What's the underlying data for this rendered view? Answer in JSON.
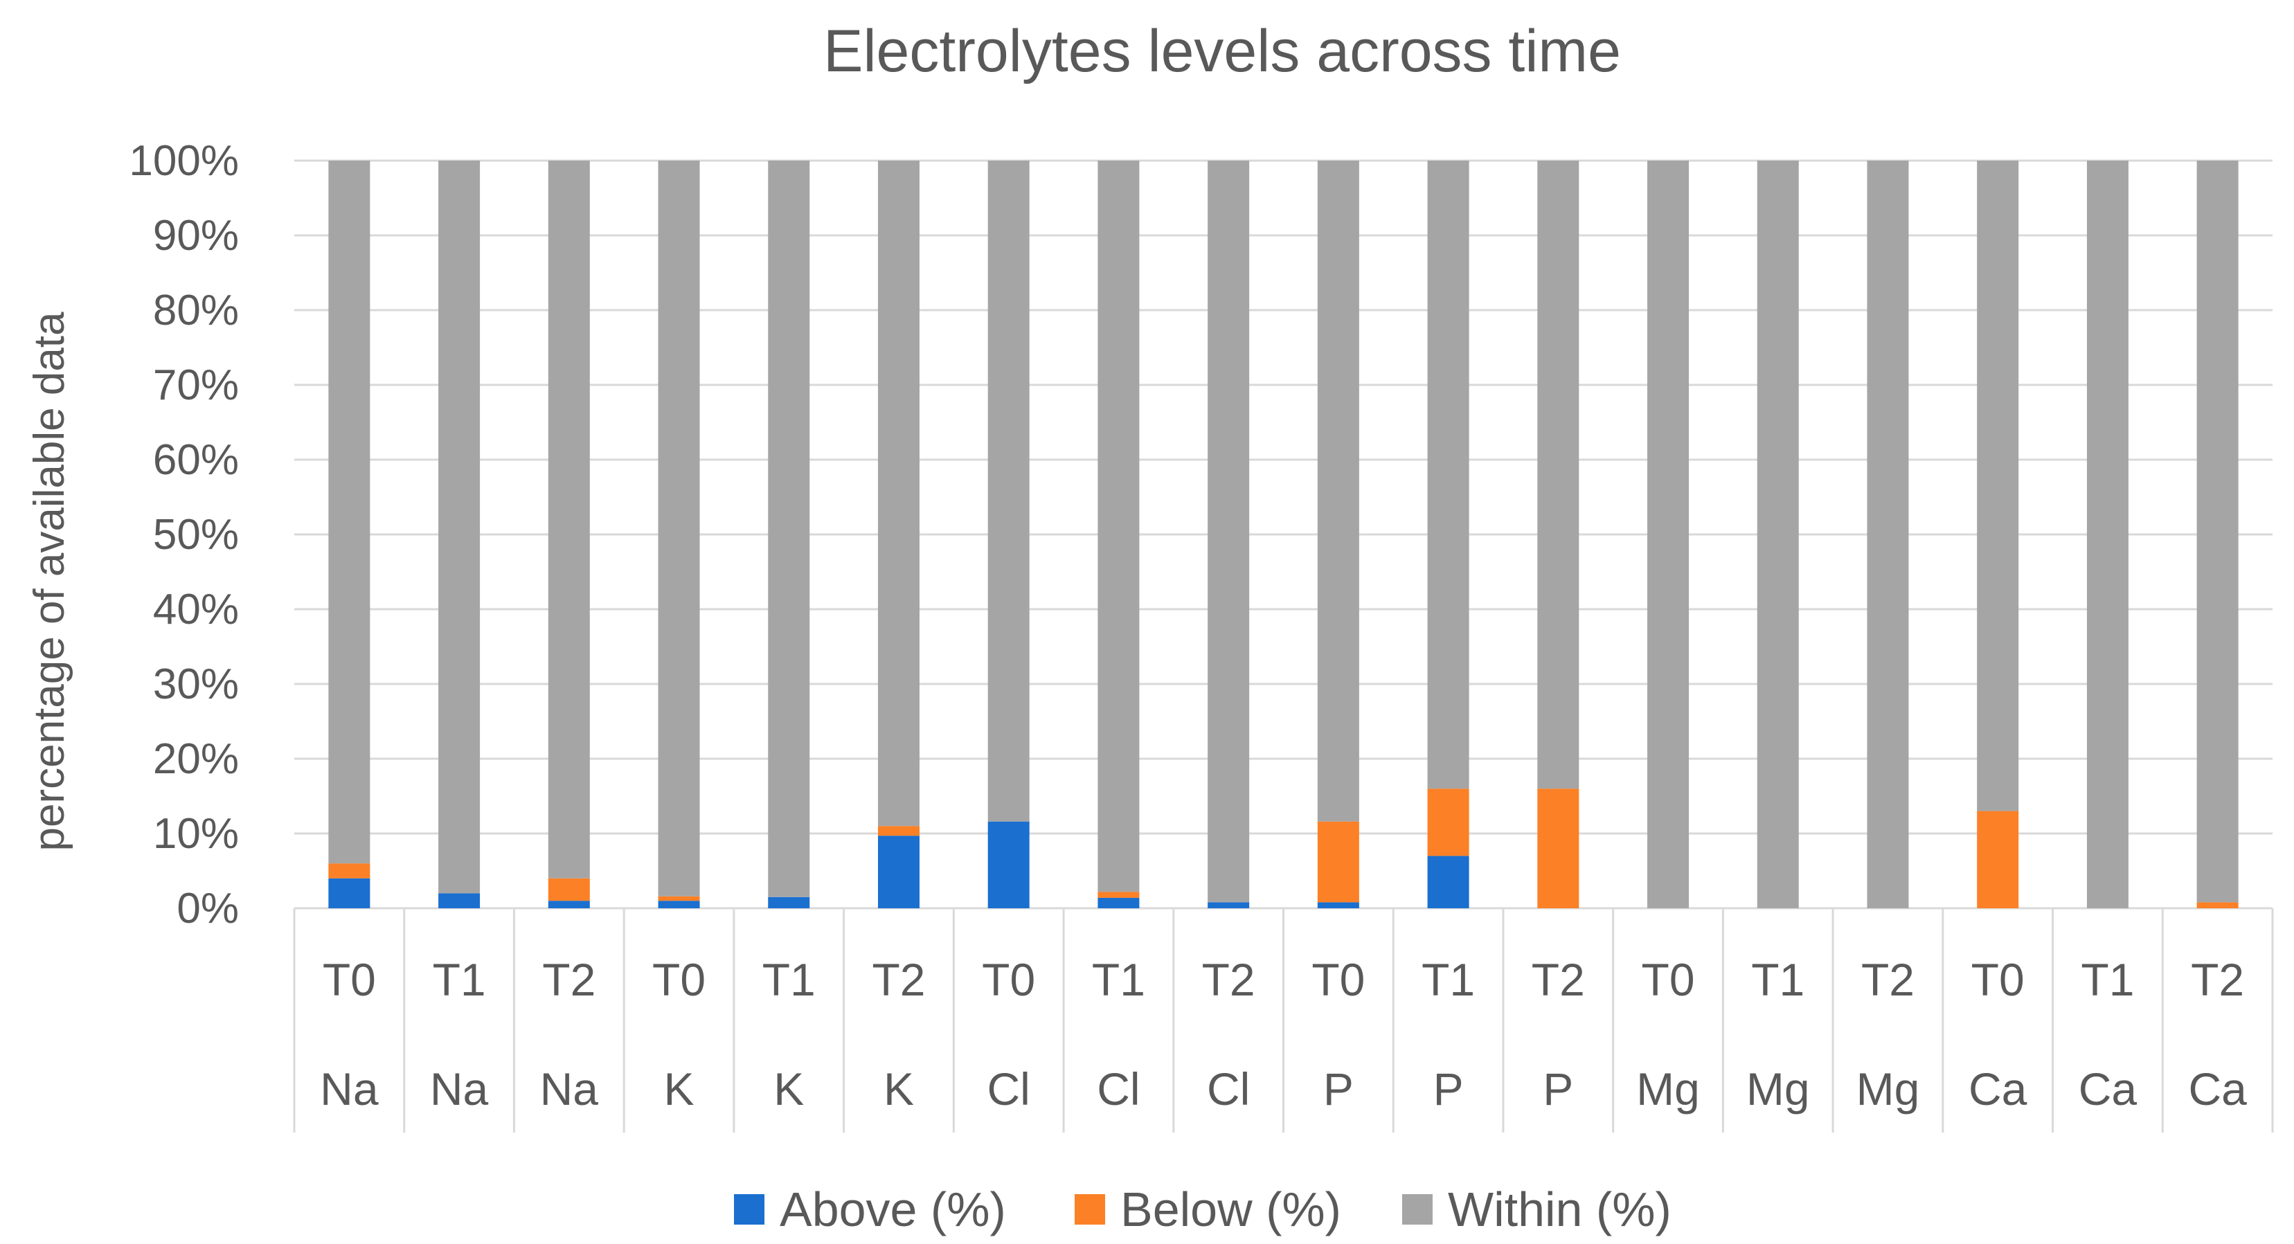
{
  "chart_data": {
    "type": "bar",
    "stacked": true,
    "title": "Electrolytes levels across time",
    "ylabel": "percentage of available data",
    "ylim": [
      0,
      100
    ],
    "yticks": [
      "0%",
      "10%",
      "20%",
      "30%",
      "40%",
      "50%",
      "60%",
      "70%",
      "80%",
      "90%",
      "100%"
    ],
    "categories": [
      {
        "time": "T0",
        "electrolyte": "Na"
      },
      {
        "time": "T1",
        "electrolyte": "Na"
      },
      {
        "time": "T2",
        "electrolyte": "Na"
      },
      {
        "time": "T0",
        "electrolyte": "K"
      },
      {
        "time": "T1",
        "electrolyte": "K"
      },
      {
        "time": "T2",
        "electrolyte": "K"
      },
      {
        "time": "T0",
        "electrolyte": "Cl"
      },
      {
        "time": "T1",
        "electrolyte": "Cl"
      },
      {
        "time": "T2",
        "electrolyte": "Cl"
      },
      {
        "time": "T0",
        "electrolyte": "P"
      },
      {
        "time": "T1",
        "electrolyte": "P"
      },
      {
        "time": "T2",
        "electrolyte": "P"
      },
      {
        "time": "T0",
        "electrolyte": "Mg"
      },
      {
        "time": "T1",
        "electrolyte": "Mg"
      },
      {
        "time": "T2",
        "electrolyte": "Mg"
      },
      {
        "time": "T0",
        "electrolyte": "Ca"
      },
      {
        "time": "T1",
        "electrolyte": "Ca"
      },
      {
        "time": "T2",
        "electrolyte": "Ca"
      }
    ],
    "series": [
      {
        "name": "Above (%)",
        "color": "#1a6fcf",
        "values": [
          4,
          2,
          1,
          1,
          1.5,
          9.7,
          11.6,
          1.4,
          0.8,
          0.8,
          7,
          0,
          0,
          0,
          0,
          0,
          0,
          0
        ]
      },
      {
        "name": "Below (%)",
        "color": "#fb8026",
        "values": [
          2,
          0,
          3,
          0.6,
          0,
          1.3,
          0,
          0.8,
          0,
          10.8,
          9,
          16,
          0,
          0,
          0,
          13,
          0,
          0.8
        ]
      },
      {
        "name": "Within (%)",
        "color": "#a5a5a5",
        "values": [
          94,
          98,
          96,
          98.4,
          98.5,
          89,
          88.4,
          97.8,
          99.2,
          88.4,
          84,
          84,
          100,
          100,
          100,
          87,
          100,
          99.2
        ]
      }
    ],
    "legend_position": "bottom"
  }
}
